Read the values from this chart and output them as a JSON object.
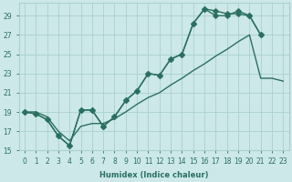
{
  "xlabel": "Humidex (Indice chaleur)",
  "bg_color": "#cce8e8",
  "grid_color": "#aad0d0",
  "line_color": "#2a7060",
  "ylim": [
    15,
    30
  ],
  "yticks": [
    15,
    17,
    19,
    21,
    23,
    25,
    27,
    29
  ],
  "xticks": [
    0,
    1,
    2,
    3,
    4,
    5,
    6,
    7,
    8,
    9,
    10,
    11,
    12,
    13,
    14,
    15,
    16,
    17,
    18,
    19,
    20,
    21,
    22,
    23
  ],
  "curve1_x": [
    0,
    1,
    2,
    3,
    4,
    5,
    6,
    7,
    8,
    9,
    10,
    11,
    12,
    13,
    14,
    15,
    16,
    17,
    18,
    19,
    20,
    21
  ],
  "curve1_y": [
    19.0,
    18.8,
    18.2,
    16.5,
    15.5,
    19.2,
    19.2,
    17.5,
    18.5,
    20.2,
    21.2,
    23.0,
    22.8,
    24.5,
    25.0,
    28.2,
    29.7,
    29.5,
    29.2,
    29.2,
    29.0,
    27.0
  ],
  "curve2_x": [
    0,
    1,
    2,
    3,
    4,
    5,
    6,
    7,
    8,
    9,
    10,
    11,
    12,
    13,
    14,
    15,
    16,
    17,
    18,
    19,
    20,
    21
  ],
  "curve2_y": [
    19.0,
    18.8,
    18.2,
    16.5,
    15.5,
    19.2,
    19.2,
    17.5,
    18.5,
    20.2,
    21.2,
    23.0,
    22.8,
    24.5,
    25.0,
    28.2,
    29.7,
    29.0,
    29.0,
    29.5,
    29.0,
    27.0
  ],
  "curve3_x": [
    0,
    1,
    2,
    3,
    4,
    5,
    6,
    7,
    8,
    9,
    10,
    11,
    12,
    13,
    14,
    15,
    16,
    17,
    18,
    19,
    20,
    21,
    22,
    23
  ],
  "curve3_y": [
    19.0,
    19.0,
    18.5,
    17.0,
    16.0,
    17.5,
    17.8,
    17.8,
    18.3,
    19.0,
    19.8,
    20.5,
    21.0,
    21.8,
    22.5,
    23.3,
    24.0,
    24.8,
    25.5,
    26.3,
    27.0,
    22.5,
    22.5,
    22.2
  ],
  "linewidth": 1.0,
  "markersize": 2.8
}
